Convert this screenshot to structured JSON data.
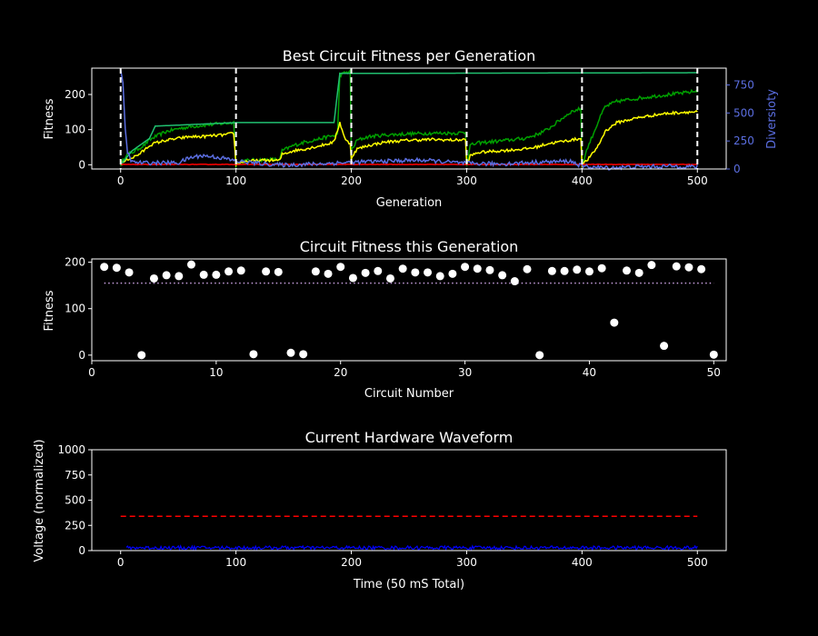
{
  "figure": {
    "background": "#000000"
  },
  "chart_data": [
    {
      "type": "line",
      "title": "Best Circuit Fitness per Generation",
      "xlabel": "Generation",
      "ylabel": "Fitness",
      "y2label": "Diversioty",
      "xlim": [
        -25,
        525
      ],
      "ylim": [
        -12,
        275
      ],
      "y2lim": [
        0,
        900
      ],
      "xticks": [
        0,
        100,
        200,
        300,
        400,
        500
      ],
      "yticks": [
        0,
        100,
        200
      ],
      "y2ticks": [
        0,
        250,
        500,
        750
      ],
      "grid": false,
      "vlines": {
        "x": [
          0,
          100,
          200,
          300,
          400,
          500
        ],
        "color": "#ffffff",
        "style": "dashed"
      },
      "series": [
        {
          "color": "#00a000",
          "style": "solid",
          "axis": "left",
          "noise": 5,
          "points": [
            [
              0,
              0
            ],
            [
              5,
              30
            ],
            [
              10,
              35
            ],
            [
              15,
              45
            ],
            [
              20,
              55
            ],
            [
              25,
              70
            ],
            [
              30,
              80
            ],
            [
              40,
              95
            ],
            [
              50,
              103
            ],
            [
              60,
              108
            ],
            [
              70,
              112
            ],
            [
              80,
              115
            ],
            [
              90,
              118
            ],
            [
              98,
              120
            ],
            [
              100,
              0
            ],
            [
              105,
              10
            ],
            [
              110,
              12
            ],
            [
              120,
              14
            ],
            [
              130,
              15
            ],
            [
              138,
              15
            ],
            [
              140,
              40
            ],
            [
              150,
              55
            ],
            [
              160,
              65
            ],
            [
              170,
              72
            ],
            [
              180,
              80
            ],
            [
              188,
              85
            ],
            [
              190,
              255
            ],
            [
              195,
              262
            ],
            [
              199,
              265
            ],
            [
              200,
              40
            ],
            [
              205,
              70
            ],
            [
              215,
              80
            ],
            [
              230,
              85
            ],
            [
              250,
              88
            ],
            [
              270,
              90
            ],
            [
              290,
              90
            ],
            [
              299,
              92
            ],
            [
              300,
              0
            ],
            [
              303,
              55
            ],
            [
              310,
              62
            ],
            [
              330,
              68
            ],
            [
              350,
              75
            ],
            [
              360,
              85
            ],
            [
              370,
              100
            ],
            [
              380,
              125
            ],
            [
              390,
              150
            ],
            [
              399,
              160
            ],
            [
              400,
              0
            ],
            [
              405,
              50
            ],
            [
              410,
              90
            ],
            [
              415,
              130
            ],
            [
              420,
              165
            ],
            [
              430,
              180
            ],
            [
              450,
              190
            ],
            [
              470,
              198
            ],
            [
              490,
              205
            ],
            [
              500,
              210
            ]
          ]
        },
        {
          "color": "#ffff00",
          "style": "solid",
          "axis": "left",
          "noise": 4,
          "points": [
            [
              0,
              0
            ],
            [
              5,
              15
            ],
            [
              10,
              20
            ],
            [
              15,
              28
            ],
            [
              20,
              40
            ],
            [
              25,
              55
            ],
            [
              30,
              62
            ],
            [
              40,
              70
            ],
            [
              50,
              75
            ],
            [
              60,
              80
            ],
            [
              70,
              80
            ],
            [
              80,
              83
            ],
            [
              90,
              85
            ],
            [
              98,
              90
            ],
            [
              100,
              0
            ],
            [
              105,
              8
            ],
            [
              110,
              10
            ],
            [
              120,
              12
            ],
            [
              130,
              13
            ],
            [
              138,
              12
            ],
            [
              140,
              30
            ],
            [
              150,
              40
            ],
            [
              160,
              45
            ],
            [
              170,
              52
            ],
            [
              180,
              60
            ],
            [
              185,
              65
            ],
            [
              190,
              120
            ],
            [
              195,
              70
            ],
            [
              199,
              60
            ],
            [
              200,
              20
            ],
            [
              205,
              45
            ],
            [
              215,
              55
            ],
            [
              230,
              65
            ],
            [
              250,
              70
            ],
            [
              270,
              72
            ],
            [
              290,
              70
            ],
            [
              299,
              72
            ],
            [
              300,
              0
            ],
            [
              303,
              25
            ],
            [
              310,
              35
            ],
            [
              330,
              40
            ],
            [
              350,
              45
            ],
            [
              360,
              50
            ],
            [
              370,
              60
            ],
            [
              380,
              65
            ],
            [
              390,
              70
            ],
            [
              399,
              75
            ],
            [
              400,
              0
            ],
            [
              405,
              15
            ],
            [
              410,
              35
            ],
            [
              415,
              60
            ],
            [
              420,
              95
            ],
            [
              430,
              120
            ],
            [
              450,
              135
            ],
            [
              470,
              145
            ],
            [
              490,
              150
            ],
            [
              500,
              150
            ]
          ]
        },
        {
          "color": "#20c070",
          "style": "solid",
          "axis": "left",
          "noise": 0,
          "points": [
            [
              0,
              0
            ],
            [
              10,
              40
            ],
            [
              25,
              75
            ],
            [
              30,
              110
            ],
            [
              100,
              120
            ],
            [
              185,
              120
            ],
            [
              190,
              260
            ],
            [
              500,
              262
            ]
          ]
        },
        {
          "color": "#ff0000",
          "style": "solid",
          "axis": "left",
          "noise": 0.5,
          "points": [
            [
              0,
              1
            ],
            [
              100,
              1
            ],
            [
              200,
              1
            ],
            [
              300,
              1
            ],
            [
              400,
              1
            ],
            [
              500,
              1
            ]
          ]
        },
        {
          "color": "#5b6ee1",
          "style": "solid",
          "axis": "right",
          "noise": 18,
          "points": [
            [
              0,
              900
            ],
            [
              2,
              750
            ],
            [
              4,
              350
            ],
            [
              6,
              150
            ],
            [
              10,
              60
            ],
            [
              20,
              55
            ],
            [
              50,
              55
            ],
            [
              60,
              100
            ],
            [
              70,
              120
            ],
            [
              80,
              110
            ],
            [
              90,
              95
            ],
            [
              100,
              70
            ],
            [
              120,
              50
            ],
            [
              140,
              35
            ],
            [
              170,
              45
            ],
            [
              200,
              60
            ],
            [
              230,
              70
            ],
            [
              260,
              80
            ],
            [
              300,
              50
            ],
            [
              330,
              45
            ],
            [
              360,
              60
            ],
            [
              390,
              70
            ],
            [
              400,
              25
            ],
            [
              420,
              10
            ],
            [
              450,
              20
            ],
            [
              480,
              25
            ],
            [
              500,
              20
            ]
          ]
        }
      ]
    },
    {
      "type": "scatter",
      "title": "Circuit Fitness this Generation",
      "xlabel": "Circuit Number",
      "ylabel": "Fitness",
      "xlim": [
        0,
        51
      ],
      "ylim": [
        -12,
        207
      ],
      "xticks": [
        0,
        10,
        20,
        30,
        40,
        50
      ],
      "yticks": [
        0,
        100,
        200
      ],
      "grid": false,
      "marker_color": "#ffffff",
      "x": [
        1,
        2,
        3,
        4,
        5,
        6,
        7,
        8,
        9,
        10,
        11,
        12,
        13,
        14,
        15,
        16,
        17,
        18,
        19,
        20,
        21,
        22,
        23,
        24,
        25,
        26,
        27,
        28,
        29,
        30,
        31,
        32,
        33,
        34,
        35,
        36,
        37,
        38,
        39,
        40,
        41,
        42,
        43,
        44,
        45,
        46,
        47,
        48,
        49,
        50
      ],
      "y": [
        190,
        188,
        178,
        0,
        165,
        172,
        170,
        195,
        173,
        173,
        180,
        182,
        2,
        180,
        179,
        5,
        2,
        180,
        175,
        190,
        166,
        177,
        181,
        165,
        186,
        178,
        178,
        170,
        175,
        190,
        186,
        183,
        172,
        159,
        185,
        0,
        181,
        181,
        184,
        180,
        187,
        70,
        182,
        177,
        194,
        20,
        191,
        189,
        185,
        1
      ],
      "hline": {
        "y": 155,
        "color": "#c8a0e0",
        "style": "dotted"
      }
    },
    {
      "type": "line",
      "title": "Current Hardware Waveform",
      "xlabel": "Time (50 mS Total)",
      "ylabel": "Voltage (normalized)",
      "xlim": [
        -25,
        525
      ],
      "ylim": [
        0,
        1000
      ],
      "xticks": [
        0,
        100,
        200,
        300,
        400,
        500
      ],
      "yticks": [
        0,
        250,
        500,
        750,
        1000
      ],
      "grid": false,
      "threshold": {
        "y": 340,
        "x_range": [
          0,
          500
        ],
        "color": "#ff0000",
        "style": "dashed"
      },
      "waveform": {
        "x_range": [
          5,
          500
        ],
        "mean": 28,
        "amplitude": 18,
        "color": "#0000ff"
      }
    }
  ]
}
